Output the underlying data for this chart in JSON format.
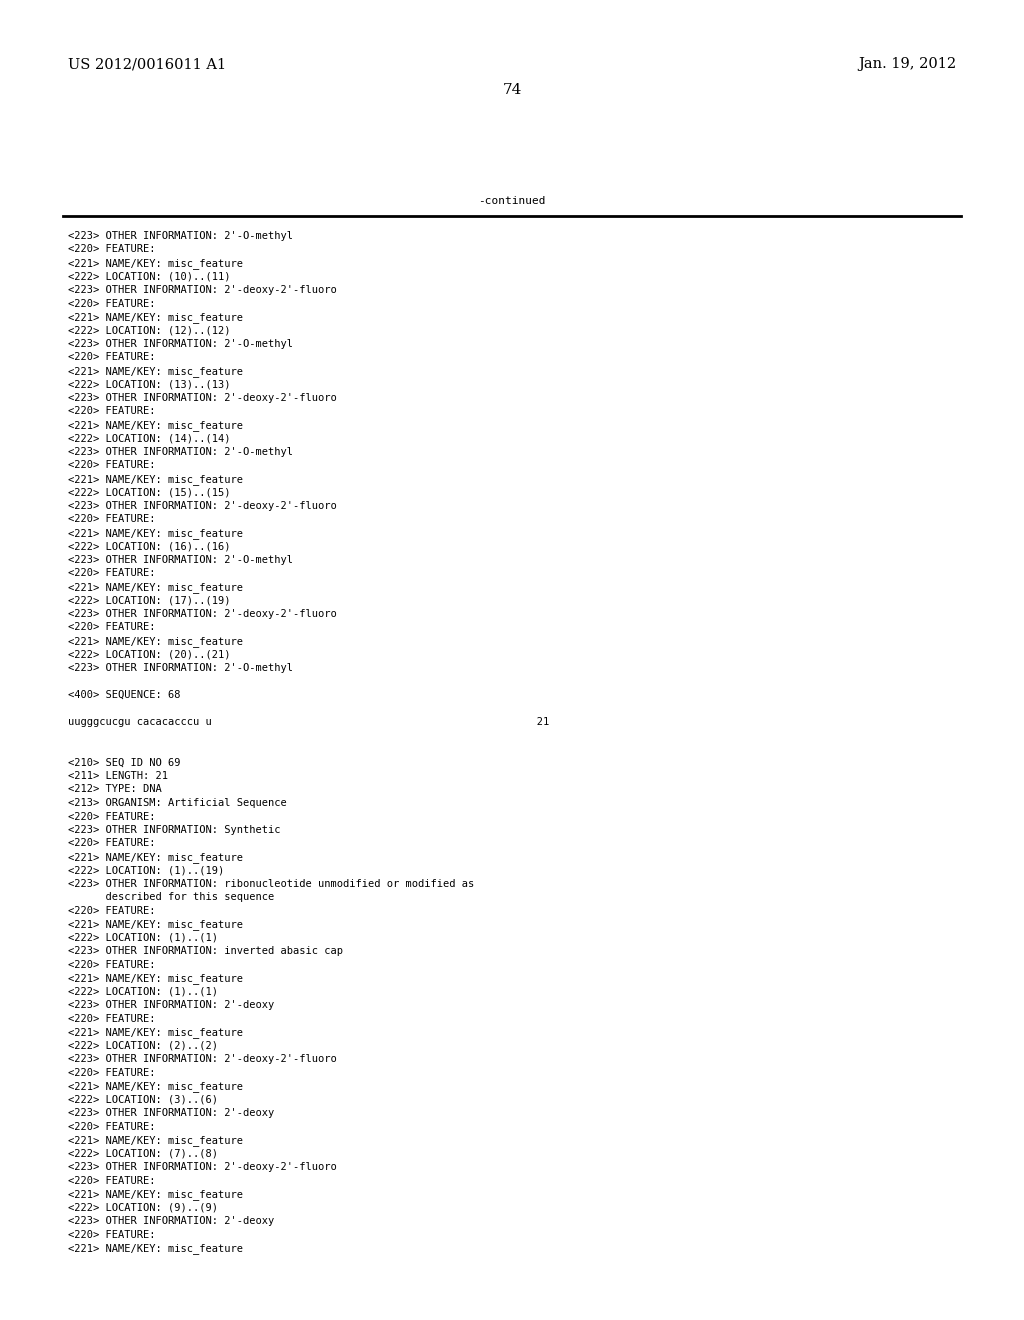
{
  "header_left": "US 2012/0016011 A1",
  "header_right": "Jan. 19, 2012",
  "page_number": "74",
  "continued_label": "-continued",
  "background_color": "#ffffff",
  "text_color": "#000000",
  "font_size": 7.5,
  "mono_font": "DejaVu Sans Mono",
  "header_font_size": 10.5,
  "page_num_font_size": 11,
  "lines": [
    "<223> OTHER INFORMATION: 2'-O-methyl",
    "<220> FEATURE:",
    "<221> NAME/KEY: misc_feature",
    "<222> LOCATION: (10)..(11)",
    "<223> OTHER INFORMATION: 2'-deoxy-2'-fluoro",
    "<220> FEATURE:",
    "<221> NAME/KEY: misc_feature",
    "<222> LOCATION: (12)..(12)",
    "<223> OTHER INFORMATION: 2'-O-methyl",
    "<220> FEATURE:",
    "<221> NAME/KEY: misc_feature",
    "<222> LOCATION: (13)..(13)",
    "<223> OTHER INFORMATION: 2'-deoxy-2'-fluoro",
    "<220> FEATURE:",
    "<221> NAME/KEY: misc_feature",
    "<222> LOCATION: (14)..(14)",
    "<223> OTHER INFORMATION: 2'-O-methyl",
    "<220> FEATURE:",
    "<221> NAME/KEY: misc_feature",
    "<222> LOCATION: (15)..(15)",
    "<223> OTHER INFORMATION: 2'-deoxy-2'-fluoro",
    "<220> FEATURE:",
    "<221> NAME/KEY: misc_feature",
    "<222> LOCATION: (16)..(16)",
    "<223> OTHER INFORMATION: 2'-O-methyl",
    "<220> FEATURE:",
    "<221> NAME/KEY: misc_feature",
    "<222> LOCATION: (17)..(19)",
    "<223> OTHER INFORMATION: 2'-deoxy-2'-fluoro",
    "<220> FEATURE:",
    "<221> NAME/KEY: misc_feature",
    "<222> LOCATION: (20)..(21)",
    "<223> OTHER INFORMATION: 2'-O-methyl",
    "",
    "<400> SEQUENCE: 68",
    "",
    "uugggcucgu cacacacccu u                                                    21",
    "",
    "",
    "<210> SEQ ID NO 69",
    "<211> LENGTH: 21",
    "<212> TYPE: DNA",
    "<213> ORGANISM: Artificial Sequence",
    "<220> FEATURE:",
    "<223> OTHER INFORMATION: Synthetic",
    "<220> FEATURE:",
    "<221> NAME/KEY: misc_feature",
    "<222> LOCATION: (1)..(19)",
    "<223> OTHER INFORMATION: ribonucleotide unmodified or modified as",
    "      described for this sequence",
    "<220> FEATURE:",
    "<221> NAME/KEY: misc_feature",
    "<222> LOCATION: (1)..(1)",
    "<223> OTHER INFORMATION: inverted abasic cap",
    "<220> FEATURE:",
    "<221> NAME/KEY: misc_feature",
    "<222> LOCATION: (1)..(1)",
    "<223> OTHER INFORMATION: 2'-deoxy",
    "<220> FEATURE:",
    "<221> NAME/KEY: misc_feature",
    "<222> LOCATION: (2)..(2)",
    "<223> OTHER INFORMATION: 2'-deoxy-2'-fluoro",
    "<220> FEATURE:",
    "<221> NAME/KEY: misc_feature",
    "<222> LOCATION: (3)..(6)",
    "<223> OTHER INFORMATION: 2'-deoxy",
    "<220> FEATURE:",
    "<221> NAME/KEY: misc_feature",
    "<222> LOCATION: (7)..(8)",
    "<223> OTHER INFORMATION: 2'-deoxy-2'-fluoro",
    "<220> FEATURE:",
    "<221> NAME/KEY: misc_feature",
    "<222> LOCATION: (9)..(9)",
    "<223> OTHER INFORMATION: 2'-deoxy",
    "<220> FEATURE:",
    "<221> NAME/KEY: misc_feature"
  ]
}
